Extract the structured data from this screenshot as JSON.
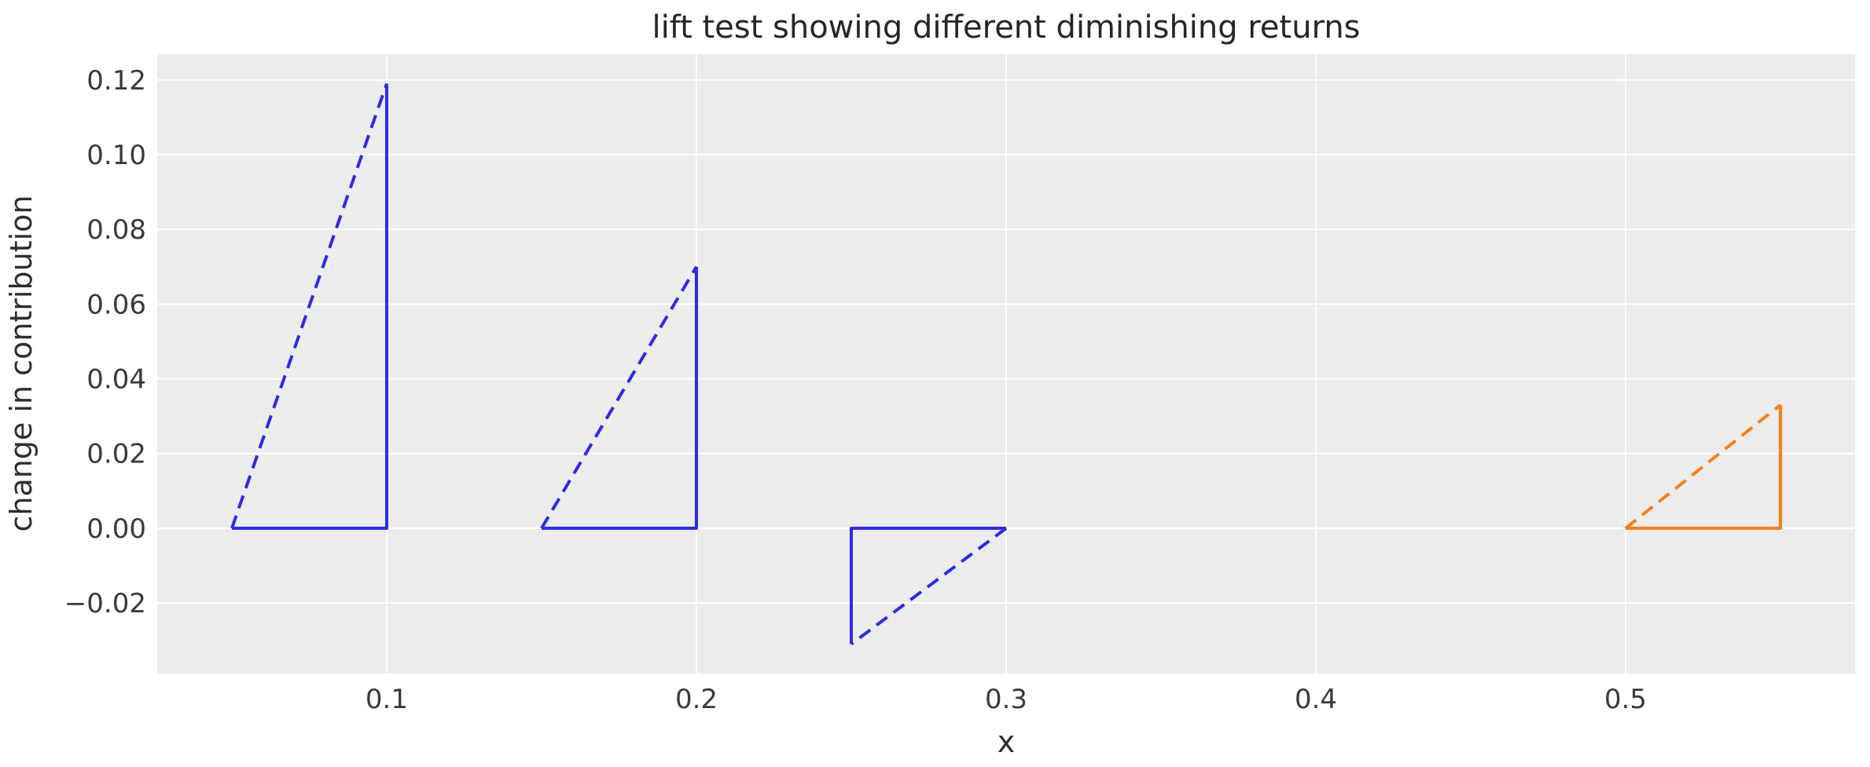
{
  "figure": {
    "title": "lift test showing different diminishing returns",
    "xlabel": "x",
    "ylabel": "change in contribution",
    "plot_background_color": "#ececec",
    "gridline_color": "#ffffff",
    "blue_color": "#2b2be6",
    "orange_color": "#f87f17"
  },
  "chart_data": {
    "type": "line",
    "title": "lift test showing different diminishing returns",
    "xlabel": "x",
    "ylabel": "change in contribution",
    "xlim": [
      0.0259,
      0.5741
    ],
    "ylim": [
      -0.0389,
      0.1269
    ],
    "grid": true,
    "legend": false,
    "x_ticks": [
      0.1,
      0.2,
      0.3,
      0.4,
      0.5
    ],
    "x_tick_labels": [
      "0.1",
      "0.2",
      "0.3",
      "0.4",
      "0.5"
    ],
    "y_ticks": [
      0.12,
      0.1,
      0.08,
      0.06,
      0.04,
      0.02,
      0.0,
      -0.02
    ],
    "y_tick_labels": [
      "0.12",
      "0.10",
      "0.08",
      "0.06",
      "0.04",
      "0.02",
      "0.00",
      "−0.02"
    ],
    "series": [
      {
        "name": "lift-triangle-1",
        "color": "#2b2be6",
        "x_start": 0.05,
        "x_end": 0.1,
        "change_in_contribution": 0.119,
        "right_angle_vertex": [
          0.1,
          0.0
        ],
        "leg_end_vertices": [
          [
            0.05,
            0.0
          ],
          [
            0.1,
            0.119
          ]
        ],
        "dashed_edge": "hypotenuse"
      },
      {
        "name": "lift-triangle-2",
        "color": "#2b2be6",
        "x_start": 0.15,
        "x_end": 0.2,
        "change_in_contribution": 0.07,
        "right_angle_vertex": [
          0.2,
          0.0
        ],
        "leg_end_vertices": [
          [
            0.15,
            0.0
          ],
          [
            0.2,
            0.07
          ]
        ],
        "dashed_edge": "hypotenuse"
      },
      {
        "name": "lift-triangle-3",
        "color": "#2b2be6",
        "x_start": 0.25,
        "x_end": 0.3,
        "change_in_contribution": -0.031,
        "right_angle_vertex": [
          0.25,
          0.0
        ],
        "leg_end_vertices": [
          [
            0.3,
            0.0
          ],
          [
            0.25,
            -0.031
          ]
        ],
        "dashed_edge": "hypotenuse"
      },
      {
        "name": "lift-triangle-4",
        "color": "#f87f17",
        "x_start": 0.5,
        "x_end": 0.55,
        "change_in_contribution": 0.033,
        "right_angle_vertex": [
          0.55,
          0.0
        ],
        "leg_end_vertices": [
          [
            0.5,
            0.0
          ],
          [
            0.55,
            0.033
          ]
        ],
        "dashed_edge": "hypotenuse"
      }
    ]
  }
}
